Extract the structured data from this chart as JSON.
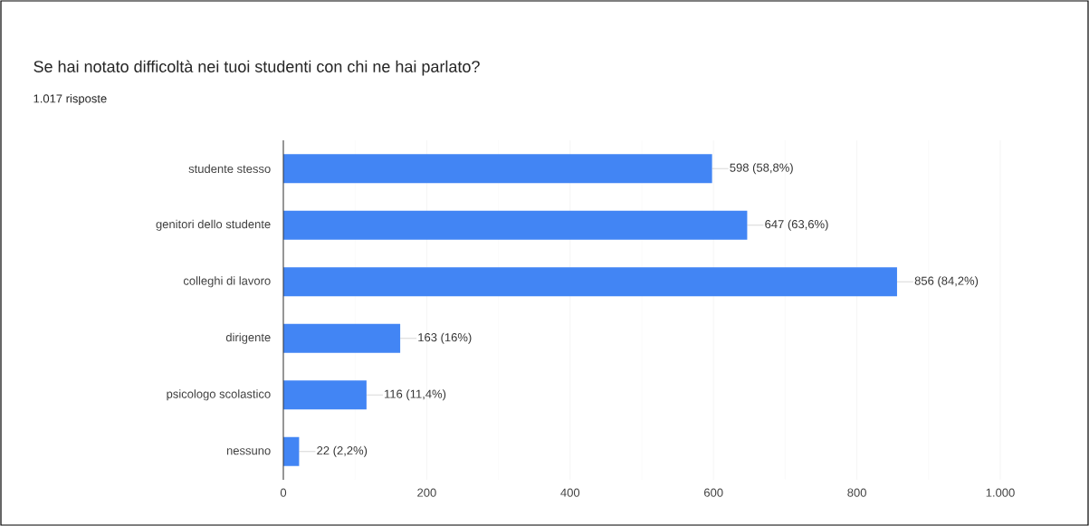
{
  "chart_data": {
    "type": "bar",
    "orientation": "horizontal",
    "title": "Se hai notato difficoltà nei tuoi studenti con chi ne hai parlato?",
    "subtitle": "1.017 risposte",
    "categories": [
      "studente stesso",
      "genitori dello studente",
      "colleghi di lavoro",
      "dirigente",
      "psicologo scolastico",
      "nessuno"
    ],
    "values": [
      598,
      647,
      856,
      163,
      116,
      22
    ],
    "value_labels": [
      "598 (58,8%)",
      "647 (63,6%)",
      "856 (84,2%)",
      "163 (16%)",
      "116 (11,4%)",
      "22 (2,2%)"
    ],
    "color": "#4285f4",
    "xlim": [
      0,
      1000
    ],
    "xticks": [
      0,
      200,
      400,
      600,
      800,
      {
        "value": 1000,
        "label": "1.000"
      }
    ],
    "grid": "x"
  }
}
